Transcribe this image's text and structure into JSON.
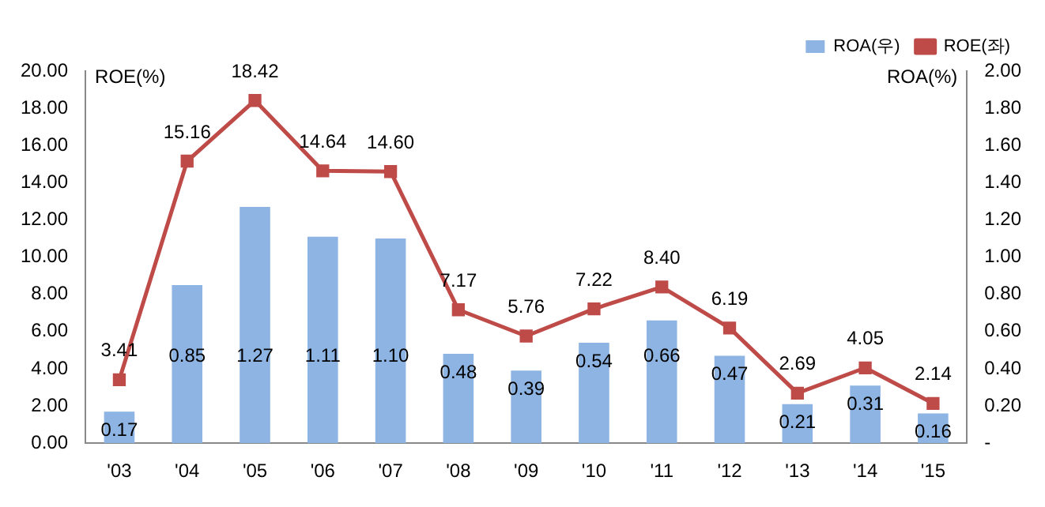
{
  "chart_data": {
    "type": "bar",
    "categories": [
      "'03",
      "'04",
      "'05",
      "'06",
      "'07",
      "'08",
      "'09",
      "'10",
      "'11",
      "'12",
      "'13",
      "'14",
      "'15"
    ],
    "ylabel": "ROE(%)",
    "y2label": "ROA(%)",
    "series": [
      {
        "name": "ROA(우)",
        "axis": "y2",
        "color": "#8db4e2",
        "values": [
          0.17,
          0.85,
          1.27,
          1.11,
          1.1,
          0.48,
          0.39,
          0.54,
          0.66,
          0.47,
          0.21,
          0.31,
          0.16
        ],
        "value_labels": [
          "0.17",
          "0.85",
          "1.27",
          "1.11",
          "1.10",
          "0.48",
          "0.39",
          "0.54",
          "0.66",
          "0.47",
          "0.21",
          "0.31",
          "0.16"
        ]
      },
      {
        "name": "ROE(좌)",
        "type": "line",
        "axis": "y",
        "color": "#be4b48",
        "marker": "square",
        "values": [
          3.41,
          15.16,
          18.42,
          14.64,
          14.6,
          7.17,
          5.76,
          7.22,
          8.4,
          6.19,
          2.69,
          4.05,
          2.14
        ],
        "value_labels": [
          "3.41",
          "15.16",
          "18.42",
          "14.64",
          "14.60",
          "7.17",
          "5.76",
          "7.22",
          "8.40",
          "6.19",
          "2.69",
          "4.05",
          "2.14"
        ]
      }
    ],
    "ylim": [
      0,
      20
    ],
    "yticks": [
      {
        "value": 0,
        "label": "0.00"
      },
      {
        "value": 2,
        "label": "2.00"
      },
      {
        "value": 4,
        "label": "4.00"
      },
      {
        "value": 6,
        "label": "6.00"
      },
      {
        "value": 8,
        "label": "8.00"
      },
      {
        "value": 10,
        "label": "10.00"
      },
      {
        "value": 12,
        "label": "12.00"
      },
      {
        "value": 14,
        "label": "14.00"
      },
      {
        "value": 16,
        "label": "16.00"
      },
      {
        "value": 18,
        "label": "18.00"
      },
      {
        "value": 20,
        "label": "20.00"
      }
    ],
    "y2lim": [
      0,
      2
    ],
    "y2ticks": [
      {
        "value": 0,
        "label": "-"
      },
      {
        "value": 0.2,
        "label": "0.20"
      },
      {
        "value": 0.4,
        "label": "0.40"
      },
      {
        "value": 0.6,
        "label": "0.60"
      },
      {
        "value": 0.8,
        "label": "0.80"
      },
      {
        "value": 1,
        "label": "1.00"
      },
      {
        "value": 1.2,
        "label": "1.20"
      },
      {
        "value": 1.4,
        "label": "1.40"
      },
      {
        "value": 1.6,
        "label": "1.60"
      },
      {
        "value": 1.8,
        "label": "1.80"
      },
      {
        "value": 2,
        "label": "2.00"
      }
    ],
    "grid": false,
    "legend": "top right"
  }
}
